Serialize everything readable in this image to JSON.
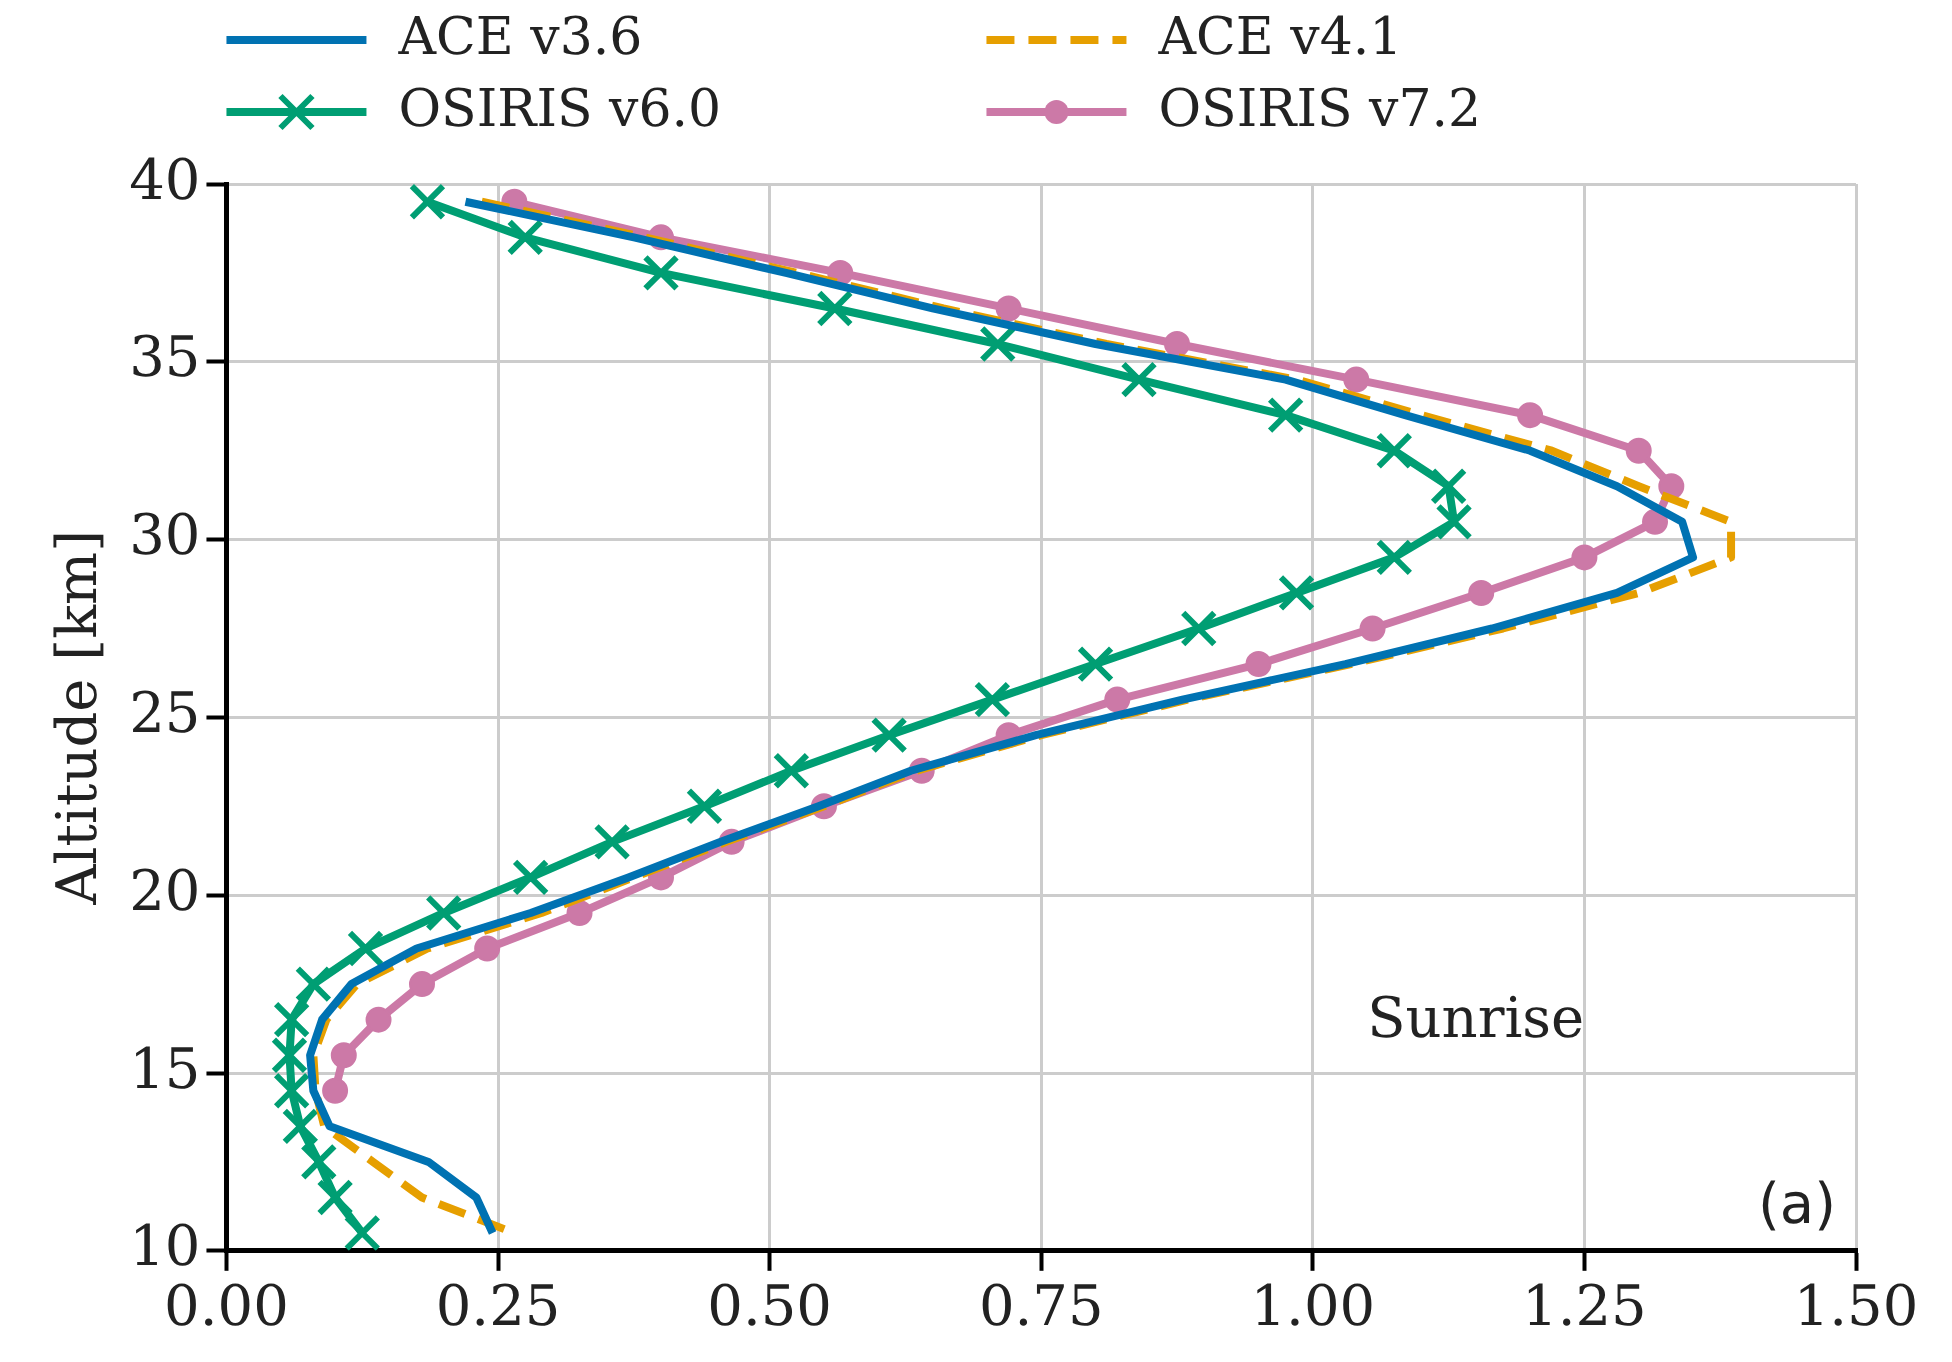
{
  "chart_data": {
    "type": "line",
    "ylabel": "Altitude [km]",
    "annotations": [
      "Sunrise",
      "(a)"
    ],
    "xlim": [
      0,
      1.5
    ],
    "xticks": [
      {
        "value": 0,
        "label": "0.00"
      },
      {
        "value": 0.25,
        "label": "0.25"
      },
      {
        "value": 0.5,
        "label": "0.50"
      },
      {
        "value": 0.75,
        "label": "0.75"
      },
      {
        "value": 1,
        "label": "1.00"
      },
      {
        "value": 1.25,
        "label": "1.25"
      },
      {
        "value": 1.5,
        "label": "1.50"
      }
    ],
    "ylim": [
      10,
      40
    ],
    "yticks": [
      10,
      15,
      20,
      25,
      30,
      35,
      40
    ],
    "grid": true,
    "legend": "top",
    "series": [
      {
        "name": "ACE v3.6",
        "color": "#0072b2",
        "marker": "none",
        "line_style": "solid",
        "x": [
          0.22,
          0.375,
          0.515,
          0.65,
          0.8,
          0.975,
          1.085,
          1.2,
          1.28,
          1.34,
          1.35,
          1.28,
          1.165,
          1.03,
          0.88,
          0.745,
          0.63,
          0.545,
          0.455,
          0.37,
          0.28,
          0.175,
          0.115,
          0.088,
          0.077,
          0.08,
          0.095,
          0.186,
          0.23,
          0.245
        ],
        "values": [
          39.5,
          38.5,
          37.5,
          36.5,
          35.5,
          34.5,
          33.5,
          32.5,
          31.5,
          30.5,
          29.5,
          28.5,
          27.5,
          26.5,
          25.5,
          24.5,
          23.5,
          22.5,
          21.5,
          20.5,
          19.5,
          18.5,
          17.5,
          16.5,
          15.5,
          14.5,
          13.5,
          12.5,
          11.5,
          10.5
        ]
      },
      {
        "name": "ACE v4.1",
        "color": "#e69f00",
        "marker": "none",
        "line_style": "dashed",
        "x": [
          0.235,
          0.385,
          0.525,
          0.66,
          0.81,
          0.985,
          1.1,
          1.22,
          1.3,
          1.385,
          1.385,
          1.3,
          1.175,
          1.035,
          0.885,
          0.75,
          0.635,
          0.55,
          0.46,
          0.375,
          0.29,
          0.185,
          0.12,
          0.092,
          0.08,
          0.082,
          0.09,
          0.135,
          0.18,
          0.265
        ],
        "values": [
          39.5,
          38.5,
          37.5,
          36.5,
          35.5,
          34.5,
          33.5,
          32.5,
          31.5,
          30.5,
          29.5,
          28.5,
          27.5,
          26.5,
          25.5,
          24.5,
          23.5,
          22.5,
          21.5,
          20.5,
          19.5,
          18.5,
          17.5,
          16.5,
          15.5,
          14.5,
          13.5,
          12.5,
          11.5,
          10.5
        ]
      },
      {
        "name": "OSIRIS v6.0",
        "color": "#009e73",
        "marker": "cross",
        "line_style": "solid",
        "x": [
          0.185,
          0.275,
          0.4,
          0.56,
          0.71,
          0.84,
          0.975,
          1.075,
          1.125,
          1.13,
          1.075,
          0.985,
          0.895,
          0.8,
          0.705,
          0.61,
          0.52,
          0.44,
          0.355,
          0.28,
          0.2,
          0.128,
          0.08,
          0.06,
          0.058,
          0.06,
          0.068,
          0.085,
          0.1,
          0.125
        ],
        "values": [
          39.5,
          38.5,
          37.5,
          36.5,
          35.5,
          34.5,
          33.5,
          32.5,
          31.5,
          30.5,
          29.5,
          28.5,
          27.5,
          26.5,
          25.5,
          24.5,
          23.5,
          22.5,
          21.5,
          20.5,
          19.5,
          18.5,
          17.5,
          16.5,
          15.5,
          14.5,
          13.5,
          12.5,
          11.5,
          10.5
        ]
      },
      {
        "name": "OSIRIS v7.2",
        "color": "#cc79a7",
        "marker": "circle",
        "line_style": "solid",
        "x": [
          0.265,
          0.4,
          0.565,
          0.72,
          0.875,
          1.04,
          1.2,
          1.3,
          1.33,
          1.315,
          1.25,
          1.155,
          1.055,
          0.95,
          0.82,
          0.72,
          0.64,
          0.55,
          0.465,
          0.4,
          0.325,
          0.24,
          0.18,
          0.14,
          0.108,
          0.1
        ],
        "values": [
          39.5,
          38.5,
          37.5,
          36.5,
          35.5,
          34.5,
          33.5,
          32.5,
          31.5,
          30.5,
          29.5,
          28.5,
          27.5,
          26.5,
          25.5,
          24.5,
          23.5,
          22.5,
          21.5,
          20.5,
          19.5,
          18.5,
          17.5,
          16.5,
          15.5,
          14.5
        ]
      }
    ]
  }
}
